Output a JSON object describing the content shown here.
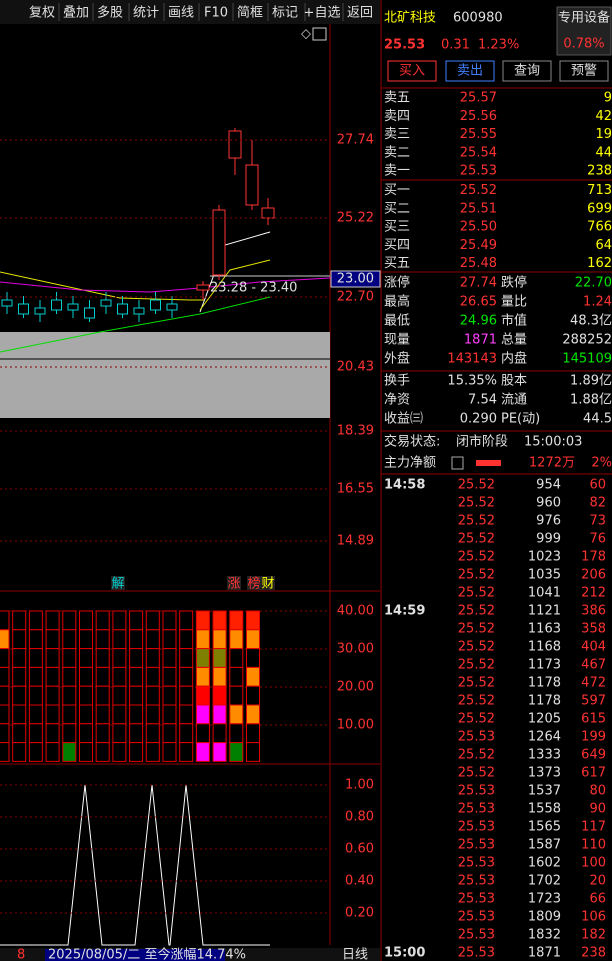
{
  "toolbar": [
    "复权",
    "叠加",
    "多股",
    "统计",
    "画线",
    "F10",
    "简框",
    "标记",
    "+自选",
    "返回"
  ],
  "stock": {
    "name": "北矿科技",
    "code": "600980",
    "industry": "专用设备",
    "price": "25.53",
    "change": "0.31",
    "change_pct": "1.23%",
    "industry_pct": "0.78%"
  },
  "actions": [
    "买入",
    "卖出",
    "查询",
    "预警"
  ],
  "order_book": [
    {
      "label": "卖五",
      "price": "25.57",
      "volume": "9"
    },
    {
      "label": "卖四",
      "price": "25.56",
      "volume": "42"
    },
    {
      "label": "卖三",
      "price": "25.55",
      "volume": "19"
    },
    {
      "label": "卖二",
      "price": "25.54",
      "volume": "44"
    },
    {
      "label": "卖一",
      "price": "25.53",
      "volume": "238"
    },
    {
      "label": "买一",
      "price": "25.52",
      "volume": "713"
    },
    {
      "label": "买二",
      "price": "25.51",
      "volume": "699"
    },
    {
      "label": "买三",
      "price": "25.50",
      "volume": "766"
    },
    {
      "label": "买四",
      "price": "25.49",
      "volume": "64"
    },
    {
      "label": "买五",
      "price": "25.48",
      "volume": "162"
    }
  ],
  "stats": [
    [
      "涨停",
      "27.74",
      "跌停",
      "22.70"
    ],
    [
      "最高",
      "26.65",
      "量比",
      "1.24"
    ],
    [
      "最低",
      "24.96",
      "市值",
      "48.3亿"
    ],
    [
      "现量",
      "1871",
      "总量",
      "288252"
    ],
    [
      "外盘",
      "143143",
      "内盘",
      "145109"
    ],
    [
      "换手",
      "15.35%",
      "股本",
      "1.89亿"
    ],
    [
      "净资",
      "7.54",
      "流通",
      "1.88亿"
    ],
    [
      "收益㈢",
      "0.290",
      "PE(动)",
      "44.5"
    ]
  ],
  "status": {
    "label": "交易状态:",
    "value": "闭市阶段",
    "time": "15:00:03"
  },
  "main_force": {
    "label": "主力净额",
    "amount": "1272万",
    "pct": "2%"
  },
  "ticks": [
    {
      "time": "14:58",
      "price": "25.52",
      "volume": "954",
      "count": "60"
    },
    {
      "price": "25.52",
      "volume": "960",
      "count": "82"
    },
    {
      "price": "25.52",
      "volume": "976",
      "count": "73"
    },
    {
      "price": "25.52",
      "volume": "999",
      "count": "76"
    },
    {
      "price": "25.52",
      "volume": "1023",
      "count": "178"
    },
    {
      "price": "25.52",
      "volume": "1035",
      "count": "206"
    },
    {
      "price": "25.52",
      "volume": "1041",
      "count": "212"
    },
    {
      "time": "14:59",
      "price": "25.52",
      "volume": "1121",
      "count": "386"
    },
    {
      "price": "25.52",
      "volume": "1163",
      "count": "358"
    },
    {
      "price": "25.52",
      "volume": "1168",
      "count": "404"
    },
    {
      "price": "25.52",
      "volume": "1173",
      "count": "467"
    },
    {
      "price": "25.52",
      "volume": "1178",
      "count": "472"
    },
    {
      "price": "25.52",
      "volume": "1178",
      "count": "597"
    },
    {
      "price": "25.52",
      "volume": "1205",
      "count": "615"
    },
    {
      "price": "25.53",
      "volume": "1264",
      "count": "199"
    },
    {
      "price": "25.52",
      "volume": "1333",
      "count": "649"
    },
    {
      "price": "25.52",
      "volume": "1373",
      "count": "617"
    },
    {
      "price": "25.53",
      "volume": "1537",
      "count": "80"
    },
    {
      "price": "25.53",
      "volume": "1558",
      "count": "90"
    },
    {
      "price": "25.53",
      "volume": "1565",
      "count": "117"
    },
    {
      "price": "25.53",
      "volume": "1587",
      "count": "110"
    },
    {
      "price": "25.53",
      "volume": "1602",
      "count": "100"
    },
    {
      "price": "25.53",
      "volume": "1702",
      "count": "20"
    },
    {
      "price": "25.53",
      "volume": "1723",
      "count": "66"
    },
    {
      "price": "25.53",
      "volume": "1809",
      "count": "106"
    },
    {
      "price": "25.53",
      "volume": "1832",
      "count": "182"
    },
    {
      "time": "15:00",
      "price": "25.53",
      "volume": "1871",
      "count": "238"
    }
  ],
  "chart": {
    "price_axis": [
      "27.74",
      "25.22",
      "22.70",
      "20.43",
      "18.39",
      "16.55",
      "14.89"
    ],
    "current_price": "23.00",
    "range_label": "23.28 - 23.40",
    "markers": [
      "解",
      "涨",
      "榜",
      "财"
    ],
    "indicator_axis": [
      "40.00",
      "30.00",
      "20.00",
      "10.00"
    ],
    "signal_axis": [
      "1.00",
      "0.80",
      "0.60",
      "0.40",
      "0.20"
    ]
  },
  "footer": {
    "period_num": "8",
    "date_info": "2025/08/05/二  至今涨幅14.74%",
    "period": "日线"
  }
}
